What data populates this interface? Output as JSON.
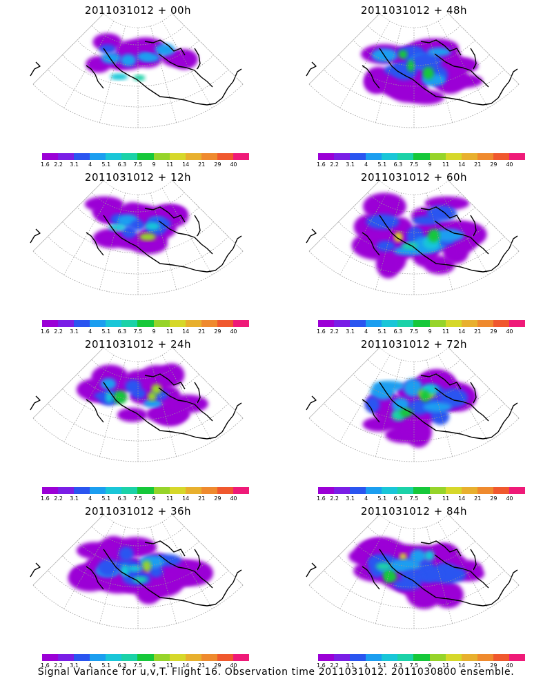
{
  "panels": [
    {
      "title": "2011031012 + 00h",
      "intensity": 0.25,
      "extent": 0.35
    },
    {
      "title": "2011031012 + 48h",
      "intensity": 0.45,
      "extent": 0.85
    },
    {
      "title": "2011031012 + 12h",
      "intensity": 0.45,
      "extent": 0.45
    },
    {
      "title": "2011031012 + 60h",
      "intensity": 0.6,
      "extent": 0.9
    },
    {
      "title": "2011031012 + 24h",
      "intensity": 0.5,
      "extent": 0.55
    },
    {
      "title": "2011031012 + 72h",
      "intensity": 0.7,
      "extent": 0.95
    },
    {
      "title": "2011031012 + 36h",
      "intensity": 0.5,
      "extent": 0.7
    },
    {
      "title": "2011031012 + 84h",
      "intensity": 0.8,
      "extent": 1.0
    }
  ],
  "colorbar": {
    "labels": [
      "1.6",
      "2.2",
      "3.1",
      "4",
      "5.1",
      "6.3",
      "7.5",
      "9",
      "11",
      "14",
      "21",
      "29",
      "40"
    ],
    "colors": [
      "#9b00d6",
      "#7a1ee6",
      "#2a55f0",
      "#1b9ef0",
      "#19c6d8",
      "#1bd2a8",
      "#16c83a",
      "#96d42a",
      "#d6d82a",
      "#e8b02e",
      "#ef8a2e",
      "#f0582e",
      "#ef1a78"
    ]
  },
  "caption": "Signal Variance for u,v,T. Flight 16. Observation time 2011031012. 2011030800 ensemble."
}
